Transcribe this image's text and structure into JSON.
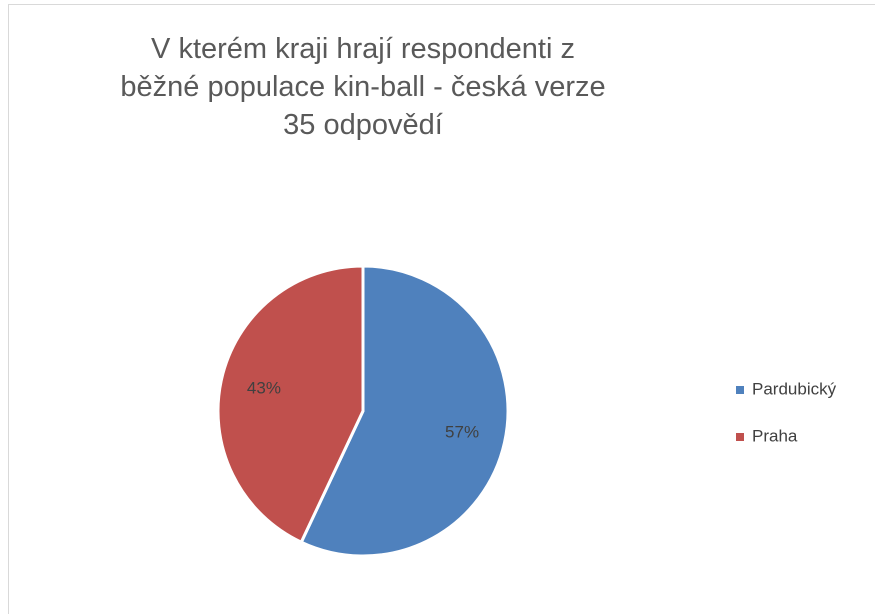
{
  "chart_data": {
    "type": "pie",
    "title": "V kterém kraji hrají respondenti z běžné populace kin-ball  - česká verze",
    "subtitle": "35 odpovědí",
    "categories": [
      "Pardubický",
      "Praha"
    ],
    "values": [
      57,
      43
    ],
    "value_labels": [
      "57%",
      "43%"
    ],
    "colors": [
      "#4f81bd",
      "#c0504d"
    ],
    "legend": "right"
  }
}
